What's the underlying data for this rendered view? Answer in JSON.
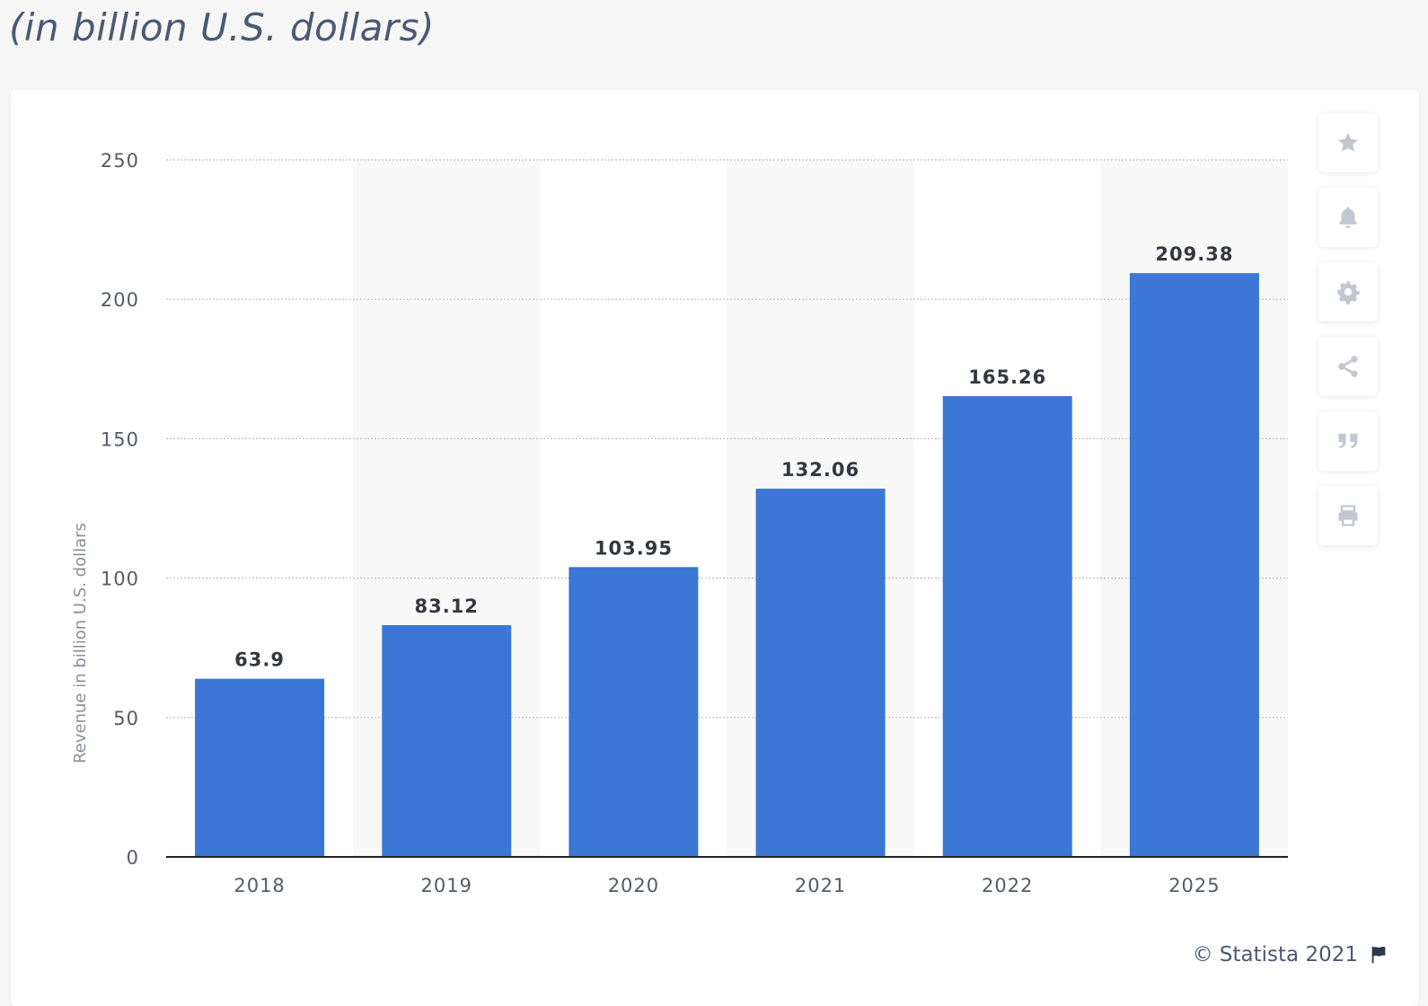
{
  "header": {
    "subtitle": "(in billion U.S. dollars)"
  },
  "toolbar": {
    "buttons": [
      {
        "icon": "star-icon"
      },
      {
        "icon": "bell-icon"
      },
      {
        "icon": "gear-icon"
      },
      {
        "icon": "share-icon"
      },
      {
        "icon": "quote-icon"
      },
      {
        "icon": "print-icon"
      }
    ],
    "icon_color": "#c3c8d0"
  },
  "footer": {
    "credit": "© Statista 2021",
    "flag_icon": "flag-icon"
  },
  "chart_data": {
    "type": "bar",
    "categories": [
      "2018",
      "2019",
      "2020",
      "2021",
      "2022",
      "2025"
    ],
    "values": [
      63.9,
      83.12,
      103.95,
      132.06,
      165.26,
      209.38
    ],
    "data_labels": [
      "63.9",
      "83.12",
      "103.95",
      "132.06",
      "165.26",
      "209.38"
    ],
    "ylabel": "Revenue in billion U.S. dollars",
    "xlabel": "",
    "ylim": [
      0,
      250
    ],
    "yticks": [
      0,
      50,
      100,
      150,
      200,
      250
    ],
    "grid": true,
    "bar_color": "#3c77d6",
    "alternate_band_color": "#f8f8f8"
  }
}
